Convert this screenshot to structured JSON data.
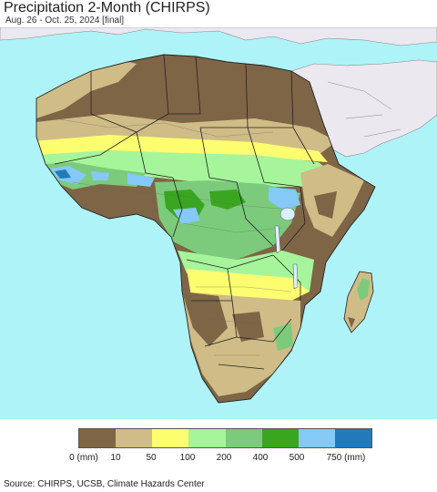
{
  "title": "Precipitation 2-Month (CHIRPS)",
  "subtitle": "Aug. 26 - Oct. 25, 2024 [final]",
  "source": "Source: CHIRPS, UCSB, Climate Hazards Center",
  "legend": {
    "colors": [
      "#7e6546",
      "#cfbc86",
      "#fdfd70",
      "#a6f59a",
      "#7ccb7c",
      "#3aa620",
      "#84c9f8",
      "#2479b9"
    ],
    "labels": [
      "0 (mm)",
      "10",
      "50",
      "100",
      "200",
      "400",
      "500",
      "750 (mm)"
    ]
  },
  "map_colors": {
    "ocean": "#aef3f8",
    "non_african_land": "#ece8ef",
    "lake": "#d8f0ff",
    "border": "#222222"
  }
}
